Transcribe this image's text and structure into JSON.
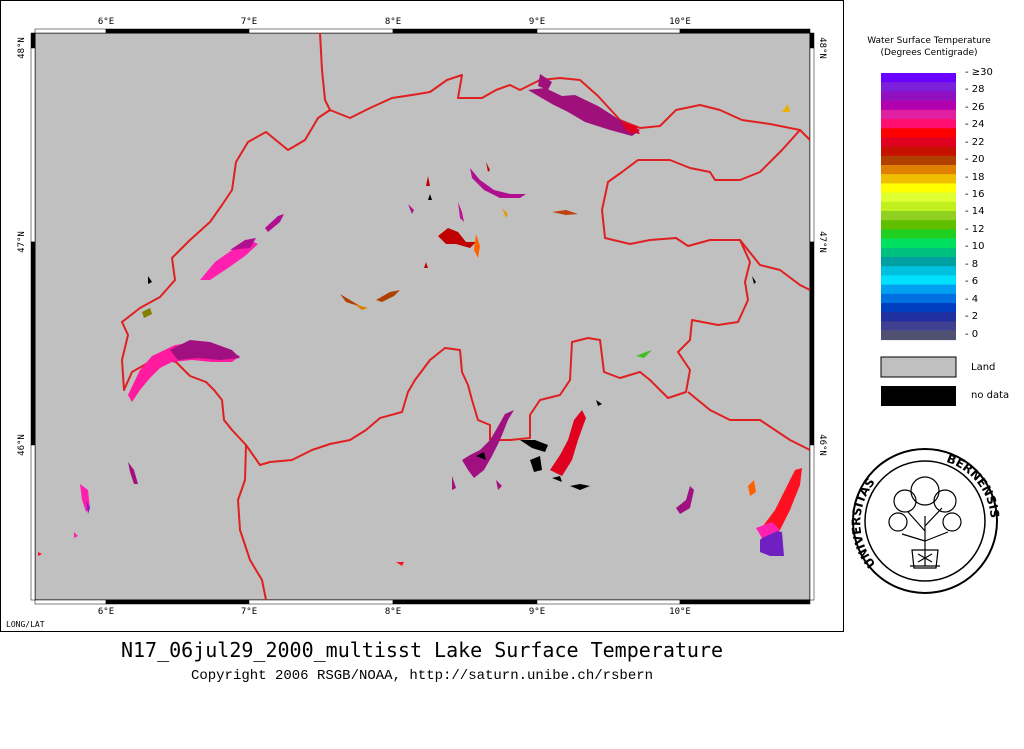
{
  "map": {
    "top_ticks": [
      "6°E",
      "7°E",
      "8°E",
      "9°E",
      "10°E"
    ],
    "bottom_ticks": [
      "6°E",
      "7°E",
      "8°E",
      "9°E",
      "10°E"
    ],
    "left_ticks": [
      "48°N",
      "47°N",
      "46°N"
    ],
    "right_ticks": [
      "48°N",
      "47°N",
      "46°N"
    ],
    "projection_label": "LONG/LAT",
    "land_color": "#c0c0c0",
    "border_color": "#e02020"
  },
  "legend": {
    "title_line1": "Water Surface Temperature",
    "title_line2": "(Degrees Centigrade)",
    "scale_labels": [
      "≥30",
      "28",
      "26",
      "24",
      "22",
      "20",
      "18",
      "16",
      "14",
      "12",
      "10",
      "8",
      "6",
      "4",
      "2",
      "0"
    ],
    "colors": [
      "#6a00ff",
      "#7a20d8",
      "#9010c0",
      "#b000b0",
      "#e020a0",
      "#ff1070",
      "#ff0000",
      "#e00020",
      "#c81000",
      "#b04000",
      "#e08000",
      "#f0c000",
      "#ffff00",
      "#e0ff30",
      "#c0f020",
      "#90d020",
      "#60c000",
      "#20d020",
      "#00e060",
      "#00c080",
      "#00a0a0",
      "#00c0e0",
      "#00e0ff",
      "#00a0f0",
      "#0070e0",
      "#0040c0",
      "#2030a0",
      "#404090",
      "#505070"
    ],
    "land_label": "Land",
    "nodata_label": "no data"
  },
  "seal": {
    "text_left": "UNIVERSITAS",
    "text_right": "BERNENSIS"
  },
  "caption": {
    "title": "N17_06jul29_2000_multisst Lake Surface Temperature",
    "copyright": "Copyright 2006 RSGB/NOAA, http://saturn.unibe.ch/rsbern"
  }
}
